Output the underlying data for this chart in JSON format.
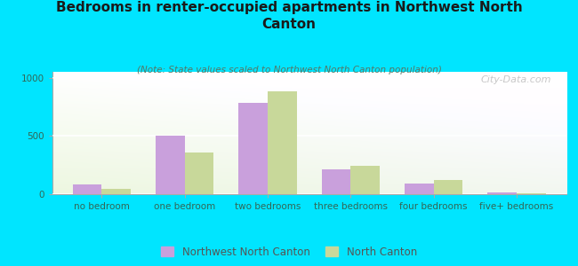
{
  "title": "Bedrooms in renter-occupied apartments in Northwest North\nCanton",
  "subtitle": "(Note: State values scaled to Northwest North Canton population)",
  "categories": [
    "no bedroom",
    "one bedroom",
    "two bedrooms",
    "three bedrooms",
    "four bedrooms",
    "five+ bedrooms"
  ],
  "northwest_values": [
    80,
    500,
    780,
    210,
    90,
    15
  ],
  "canton_values": [
    45,
    360,
    880,
    240,
    120,
    10
  ],
  "bar_color_nw": "#c9a0dc",
  "bar_color_canton": "#c8d89a",
  "legend_nw": "Northwest North Canton",
  "legend_canton": "North Canton",
  "bg_outer": "#00e5ff",
  "ylim": [
    0,
    1050
  ],
  "yticks": [
    0,
    500,
    1000
  ],
  "watermark": "City-Data.com",
  "title_fontsize": 11,
  "subtitle_fontsize": 7.5,
  "axis_label_fontsize": 7.5
}
